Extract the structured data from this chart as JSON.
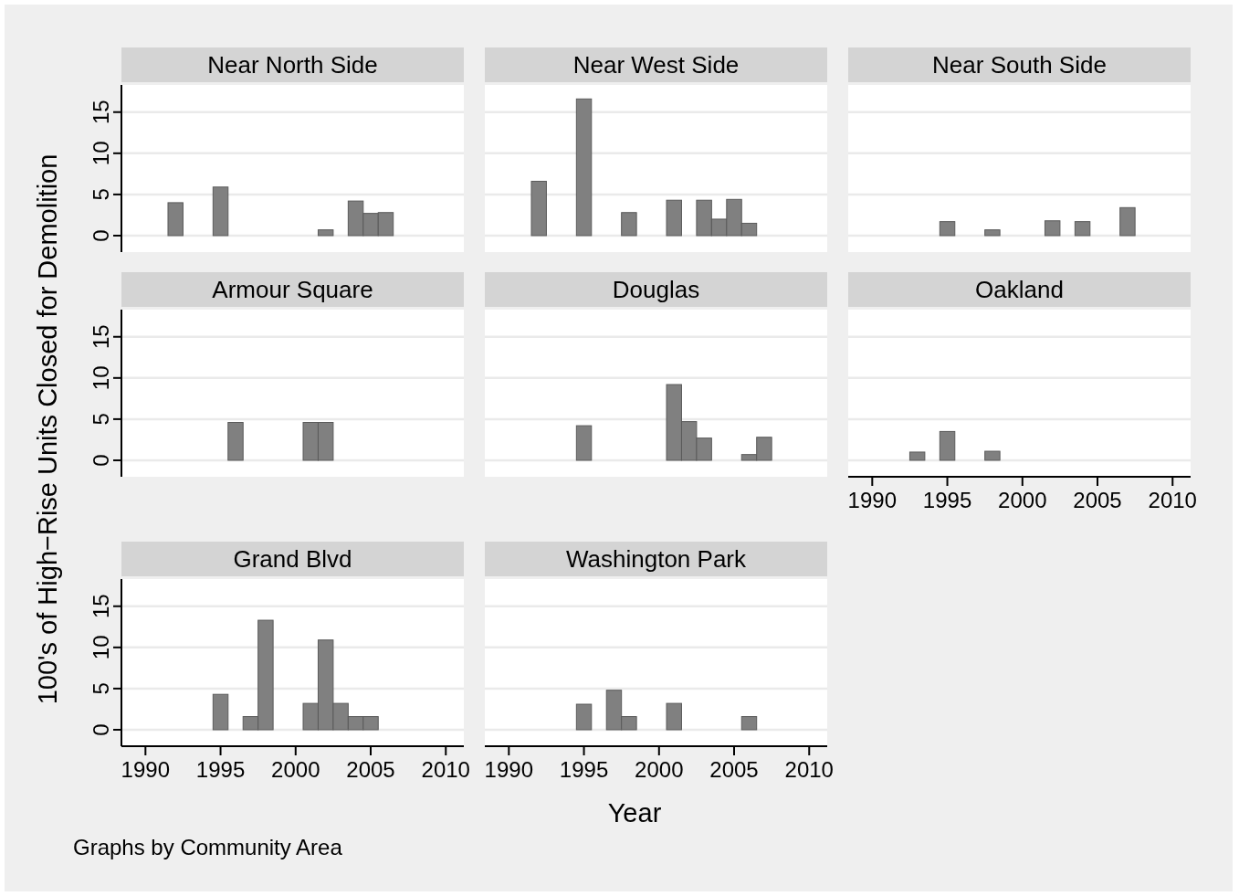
{
  "chart_data": [
    {
      "type": "bar",
      "title": "Near North Side",
      "ylabel": "100's of High−Rise Units Closed for Demolition",
      "xlabel": "Year",
      "annotations": [
        "Graphs by Community Area"
      ],
      "x": [
        1992,
        1995,
        2002,
        2004,
        2005,
        2006
      ],
      "values": [
        4.0,
        5.9,
        0.7,
        4.2,
        2.7,
        2.8
      ],
      "color": "#808080",
      "xlim": [
        1988.4,
        2011.2
      ],
      "ylim": [
        -2,
        18.3
      ],
      "yticks": [
        0,
        5,
        10,
        15
      ],
      "grid": "y",
      "tick_labels": "y"
    },
    {
      "type": "bar",
      "title": "Near West Side",
      "x": [
        1992,
        1995,
        1998,
        2001,
        2003,
        2004,
        2005,
        2006
      ],
      "values": [
        6.6,
        16.6,
        2.8,
        4.3,
        4.3,
        2.0,
        4.4,
        1.5
      ],
      "color": "#808080",
      "xlim": [
        1988.4,
        2011.2
      ],
      "ylim": [
        -2,
        18.3
      ],
      "yticks": [
        0,
        5,
        10,
        15
      ],
      "grid": "y",
      "tick_labels": false
    },
    {
      "type": "bar",
      "title": "Near South Side",
      "x": [
        1995,
        1998,
        2002,
        2004,
        2007
      ],
      "values": [
        1.7,
        0.7,
        1.8,
        1.7,
        3.4
      ],
      "color": "#808080",
      "xlim": [
        1988.4,
        2011.2
      ],
      "ylim": [
        -2,
        18.3
      ],
      "yticks": [
        0,
        5,
        10,
        15
      ],
      "grid": "y",
      "tick_labels": false
    },
    {
      "type": "bar",
      "title": "Armour Square",
      "x": [
        1996,
        2001,
        2002
      ],
      "values": [
        4.6,
        4.6,
        4.6
      ],
      "color": "#808080",
      "xlim": [
        1988.4,
        2011.2
      ],
      "ylim": [
        -2,
        18.3
      ],
      "yticks": [
        0,
        5,
        10,
        15
      ],
      "grid": "y",
      "tick_labels": "y"
    },
    {
      "type": "bar",
      "title": "Douglas",
      "x": [
        1995,
        2001,
        2002,
        2003,
        2006,
        2007
      ],
      "values": [
        4.2,
        9.2,
        4.7,
        2.7,
        0.7,
        2.8
      ],
      "color": "#808080",
      "xlim": [
        1988.4,
        2011.2
      ],
      "ylim": [
        -2,
        18.3
      ],
      "yticks": [
        0,
        5,
        10,
        15
      ],
      "grid": "y",
      "tick_labels": false
    },
    {
      "type": "bar",
      "title": "Oakland",
      "x": [
        1993,
        1995,
        1998
      ],
      "values": [
        1.0,
        3.5,
        1.1
      ],
      "color": "#808080",
      "xlim": [
        1988.4,
        2011.2
      ],
      "xticks": [
        1990,
        1995,
        2000,
        2005,
        2010
      ],
      "ylim": [
        -2,
        18.3
      ],
      "yticks": [
        0,
        5,
        10,
        15
      ],
      "grid": "y",
      "tick_labels": "x"
    },
    {
      "type": "bar",
      "title": "Grand Blvd",
      "x": [
        1995,
        1997,
        1998,
        2001,
        2002,
        2003,
        2004,
        2005
      ],
      "values": [
        4.3,
        1.6,
        13.3,
        3.2,
        10.9,
        3.2,
        1.6,
        1.6
      ],
      "color": "#808080",
      "xlim": [
        1988.4,
        2011.2
      ],
      "xticks": [
        1990,
        1995,
        2000,
        2005,
        2010
      ],
      "ylim": [
        -2,
        18.3
      ],
      "yticks": [
        0,
        5,
        10,
        15
      ],
      "grid": "y"
    },
    {
      "type": "bar",
      "title": "Washington Park",
      "x": [
        1995,
        1997,
        1998,
        2001,
        2006
      ],
      "values": [
        3.1,
        4.8,
        1.6,
        3.2,
        1.6
      ],
      "color": "#808080",
      "xlim": [
        1988.4,
        2011.2
      ],
      "xticks": [
        1990,
        1995,
        2000,
        2005,
        2010
      ],
      "ylim": [
        -2,
        18.3
      ],
      "yticks": [
        0,
        5,
        10,
        15
      ],
      "grid": "y",
      "tick_labels": "x"
    }
  ]
}
